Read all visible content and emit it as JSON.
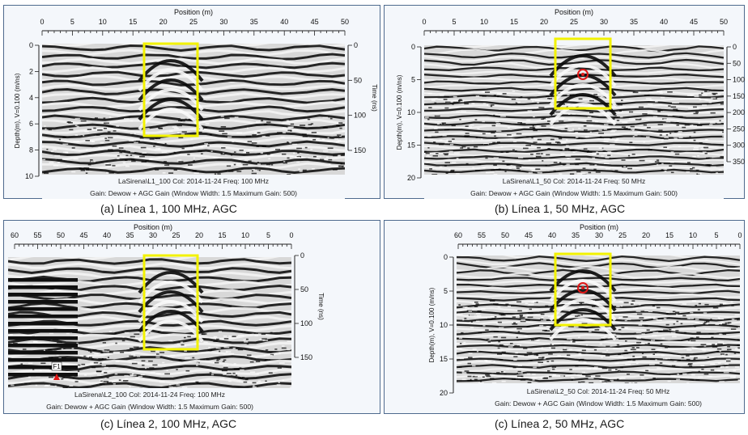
{
  "panels": [
    {
      "id": "a",
      "title": "Position (m)",
      "x_ticks": [
        "0",
        "5",
        "10",
        "15",
        "20",
        "25",
        "30",
        "35",
        "40",
        "45",
        "50"
      ],
      "left_label": "Depth(m), V=0.100 (m/ns)",
      "left_ticks": [
        "0",
        "2",
        "4",
        "6",
        "8",
        "10"
      ],
      "right_label": "Time (ns)",
      "right_ticks": [
        "0",
        "50",
        "100",
        "150"
      ],
      "info_line1": "LaSirena\\L1_100  Col: 2014-11-24  Freq: 100 MHz",
      "info_line2": "Gain: Dewow + AGC Gain (Window Width: 1.5 Maximum Gain: 500)",
      "caption": "(a)   Línea 1, 100 MHz, AGC",
      "has_target_circle": false,
      "has_marker": false
    },
    {
      "id": "b",
      "title": "Position (m)",
      "x_ticks": [
        "0",
        "5",
        "10",
        "15",
        "20",
        "25",
        "30",
        "35",
        "40",
        "45",
        "50"
      ],
      "left_label": "Depth(m), V=0.100 (m/ns)",
      "left_ticks": [
        "0",
        "5",
        "10",
        "15",
        "20"
      ],
      "right_label": "Time (ns)",
      "right_ticks": [
        "0",
        "50",
        "100",
        "150",
        "200",
        "250",
        "300",
        "350"
      ],
      "info_line1": "LaSirena\\L1_50  Col: 2014-11-24  Freq: 50 MHz",
      "info_line2": "Gain: Dewow + AGC Gain (Window Width: 1.5 Maximum Gain: 500)",
      "caption": "(b)   Línea 1, 50 MHz, AGC",
      "has_target_circle": true,
      "has_marker": false
    },
    {
      "id": "c1",
      "title": "Position (m)",
      "x_ticks": [
        "60",
        "55",
        "50",
        "45",
        "40",
        "35",
        "30",
        "25",
        "20",
        "15",
        "10",
        "5",
        "0"
      ],
      "left_label": "",
      "left_ticks": [],
      "right_label": "Time (ns)",
      "right_ticks": [
        "0",
        "50",
        "100",
        "150"
      ],
      "info_line1": "LaSirena\\L2_100  Col: 2014-11-24  Freq: 100 MHz",
      "info_line2": "Gain: Dewow + AGC Gain (Window Width: 1.5 Maximum Gain: 500)",
      "caption": "(c)   Línea 2, 100 MHz, AGC",
      "has_target_circle": false,
      "has_marker": true,
      "marker_label": "F1"
    },
    {
      "id": "c2",
      "title": "Position (m)",
      "x_ticks": [
        "60",
        "55",
        "50",
        "45",
        "40",
        "35",
        "30",
        "25",
        "20",
        "15",
        "10",
        "5",
        "0"
      ],
      "left_label": "Depth(m), V=0.100 (m/ns)",
      "left_ticks": [
        "0",
        "5",
        "10",
        "15",
        "20"
      ],
      "right_label": "",
      "right_ticks": [],
      "info_line1": "LaSirena\\L2_50  Col: 2014-11-24  Freq: 50 MHz",
      "info_line2": "Gain: Dewow + AGC Gain (Window Width: 1.5 Maximum Gain: 500)",
      "caption": "(c)   Línea 2, 50 MHz, AGC",
      "has_target_circle": true,
      "has_marker": false
    }
  ],
  "colors": {
    "frame": "#4e6a8e",
    "highlight_box": "#f2f200",
    "target_circle": "#e01818",
    "marker": "#e01818"
  }
}
